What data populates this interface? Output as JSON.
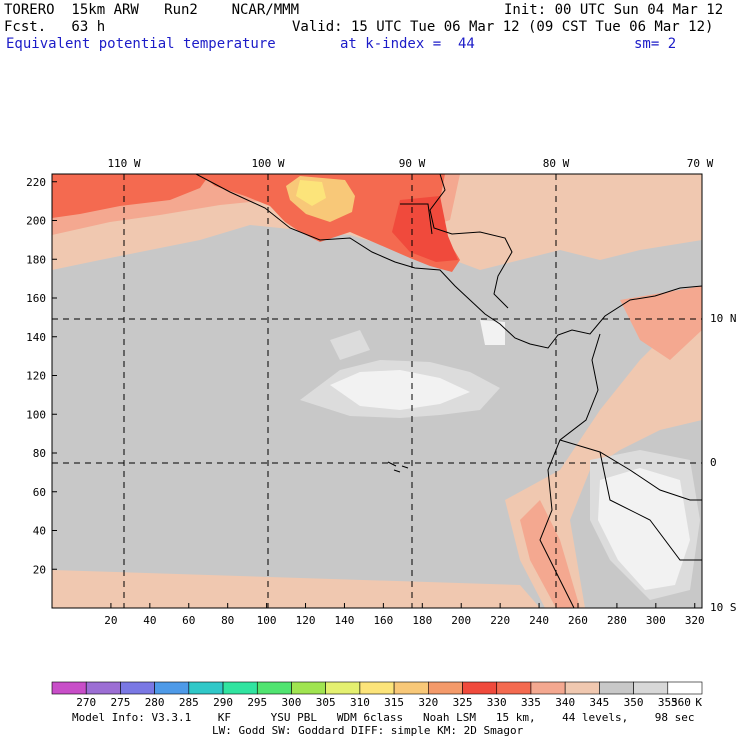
{
  "header": {
    "model": "TORERO  15km ARW   Run2    NCAR/MMM",
    "init": "Init: 00 UTC Sun 04 Mar 12",
    "fcst": "Fcst.   63 h",
    "valid": "Valid: 15 UTC Tue 06 Mar 12 (09 CST Tue 06 Mar 12)",
    "field": "Equivalent potential temperature",
    "level": "at k-index =  44",
    "smooth": "sm= 2"
  },
  "map": {
    "lon_labels": [
      "110 W",
      "100 W",
      "90 W",
      "80 W",
      "70 W"
    ],
    "lat_labels": [
      "10 N",
      "0",
      "10 S"
    ],
    "x_ticks": [
      "20",
      "40",
      "60",
      "80",
      "100",
      "120",
      "140",
      "160",
      "180",
      "200",
      "220",
      "240",
      "260",
      "280",
      "300",
      "320"
    ],
    "y_ticks": [
      "20",
      "40",
      "60",
      "80",
      "100",
      "120",
      "140",
      "160",
      "180",
      "200",
      "220"
    ]
  },
  "colorbar": {
    "labels": [
      "270",
      "275",
      "280",
      "285",
      "290",
      "295",
      "300",
      "305",
      "310",
      "315",
      "320",
      "325",
      "330",
      "335",
      "340",
      "345",
      "350",
      "355",
      "360"
    ],
    "unit": "K",
    "colors": [
      "#c84ec8",
      "#9c6ed4",
      "#7a78e4",
      "#4e9ae8",
      "#30c8c8",
      "#30e4a0",
      "#50e470",
      "#a0e450",
      "#e4f070",
      "#fce47a",
      "#f8c878",
      "#f49a6a",
      "#f04a3c",
      "#f46a50",
      "#f4a890",
      "#f0c8b0",
      "#c8c8c8",
      "#d8d8d8",
      "#ffffff"
    ]
  },
  "footer": {
    "line1": "Model Info: V3.3.1    KF      YSU PBL   WDM 6class   Noah LSM   15 km,    44 levels,    98 sec",
    "line2": "LW: Godd SW: Goddard DIFF: simple KM: 2D Smagor"
  }
}
